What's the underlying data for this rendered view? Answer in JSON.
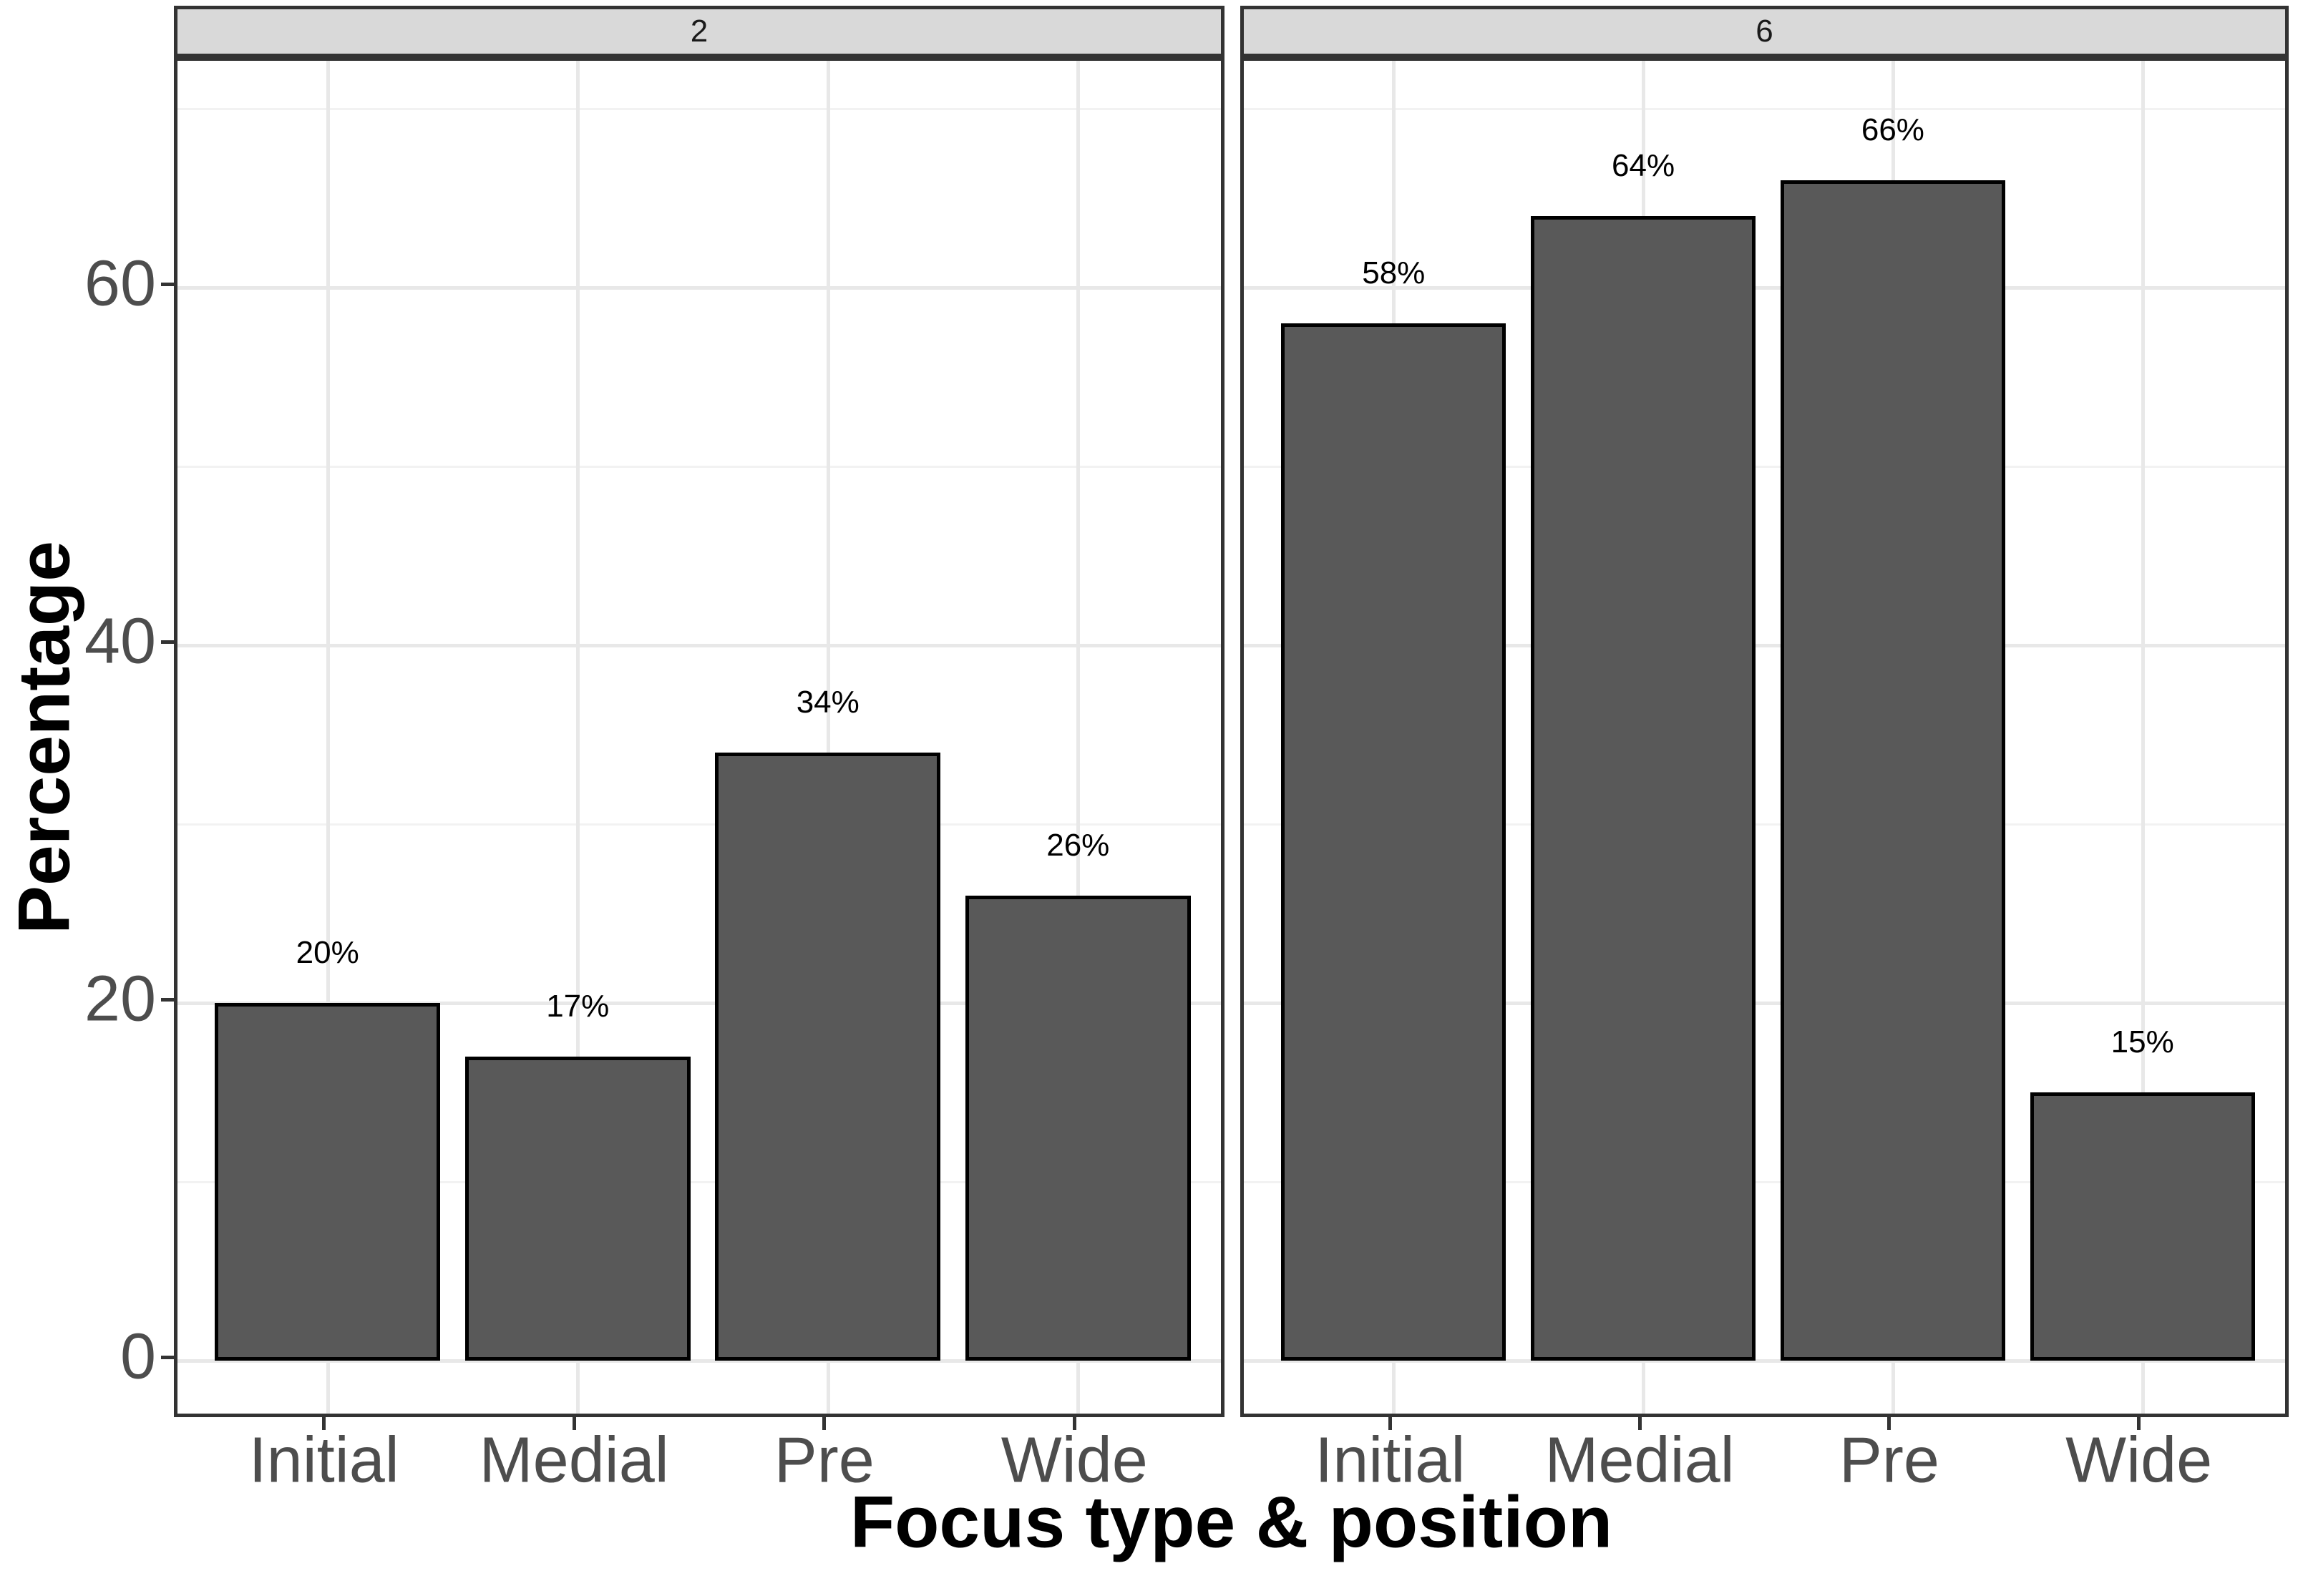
{
  "chart_data": {
    "type": "bar",
    "title": "",
    "xlabel": "Focus type & position",
    "ylabel": "Percentage",
    "categories": [
      "Initial",
      "Medial",
      "Pre",
      "Wide"
    ],
    "facets": [
      {
        "label": "2",
        "values": [
          20,
          17,
          34,
          26
        ],
        "bar_labels": [
          "20%",
          "17%",
          "34%",
          "26%"
        ]
      },
      {
        "label": "6",
        "values": [
          58,
          64,
          66,
          15
        ],
        "bar_labels": [
          "58%",
          "64%",
          "66%",
          "15%"
        ]
      }
    ],
    "y_ticks": [
      0,
      20,
      40,
      60
    ],
    "y_tick_labels": [
      "0",
      "20",
      "40",
      "60"
    ],
    "y_minor_ticks": [
      10,
      30,
      50,
      70
    ],
    "ylim": [
      -3.36,
      72.68
    ],
    "bar_width_fraction": 0.9,
    "grid": true,
    "legend": "none"
  },
  "colors": {
    "background": "#FFFFFF",
    "bar_fill": "#595959",
    "bar_stroke": "#000000",
    "panel_border": "#333333",
    "strip_background": "#D9D9D9",
    "strip_border": "#333333",
    "strip_text": "#1A1A1A",
    "grid_major": "#E8E8E8",
    "grid_minor": "#F2F2F2",
    "axis_text": "#4D4D4D",
    "axis_title": "#000000",
    "tick_mark": "#333333"
  }
}
